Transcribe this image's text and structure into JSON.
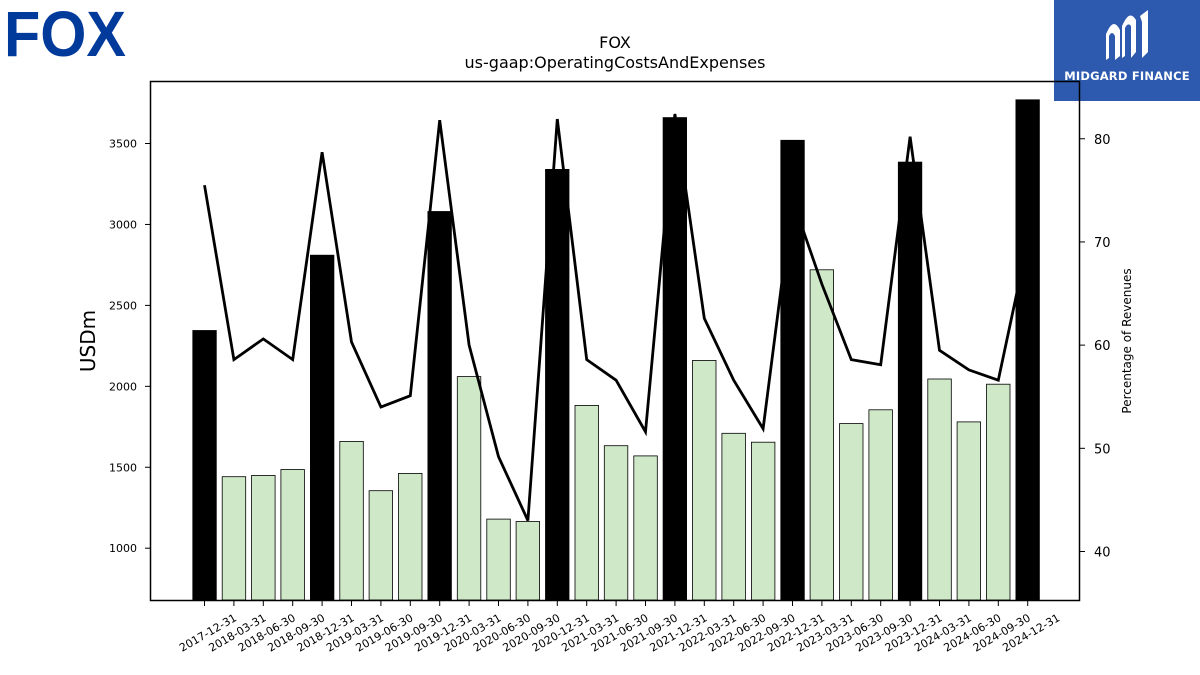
{
  "header": {
    "brand_left": "FOX",
    "brand_right": "MIDGARD FINANCE"
  },
  "chart_data": {
    "type": "bar",
    "title": "FOX",
    "subtitle": "us-gaap:OperatingCostsAndExpenses",
    "ylabel": "USDm",
    "y2label": "Percentage of Revenues",
    "ylim": [
      680,
      3880
    ],
    "y2lim": [
      35.3,
      85.5
    ],
    "yticks": [
      1000,
      1500,
      2000,
      2500,
      3000,
      3500
    ],
    "y2ticks": [
      40,
      50,
      60,
      70,
      80
    ],
    "grid": false,
    "categories": [
      "2017-12-31",
      "2018-03-31",
      "2018-06-30",
      "2018-09-30",
      "2018-12-31",
      "2019-03-31",
      "2019-06-30",
      "2019-09-30",
      "2019-12-31",
      "2020-03-31",
      "2020-06-30",
      "2020-09-30",
      "2020-12-31",
      "2021-03-31",
      "2021-06-30",
      "2021-09-30",
      "2021-12-31",
      "2022-03-31",
      "2022-06-30",
      "2022-09-30",
      "2022-12-31",
      "2023-03-31",
      "2023-06-30",
      "2023-09-30",
      "2023-12-31",
      "2024-03-31",
      "2024-06-30",
      "2024-09-30",
      "2024-12-31"
    ],
    "series": [
      {
        "type": "bar",
        "values": [
          2345,
          1442,
          1450,
          1486,
          2810,
          1660,
          1355,
          1462,
          3080,
          2060,
          1180,
          1165,
          3340,
          1882,
          1633,
          1570,
          3660,
          2160,
          1710,
          1655,
          3520,
          2720,
          1770,
          1855,
          3385,
          2045,
          1780,
          2013,
          3770
        ],
        "highlight": [
          true,
          false,
          false,
          false,
          true,
          false,
          false,
          false,
          true,
          false,
          false,
          false,
          true,
          false,
          false,
          false,
          true,
          false,
          false,
          false,
          true,
          false,
          false,
          false,
          true,
          false,
          false,
          false,
          true
        ]
      },
      {
        "type": "line",
        "axis": "right",
        "values": [
          75.5,
          58.6,
          60.6,
          58.6,
          78.7,
          60.3,
          54.0,
          55.1,
          81.8,
          60.0,
          49.2,
          43.0,
          81.9,
          58.6,
          56.6,
          51.6,
          82.4,
          62.6,
          56.6,
          51.9,
          74.1,
          65.9,
          58.6,
          58.1,
          80.2,
          59.5,
          57.6,
          56.6,
          70.0
        ]
      }
    ],
    "colors": {
      "highlight_bar": "#000000",
      "normal_bar": "#cfe8c8",
      "line": "#000000"
    }
  }
}
